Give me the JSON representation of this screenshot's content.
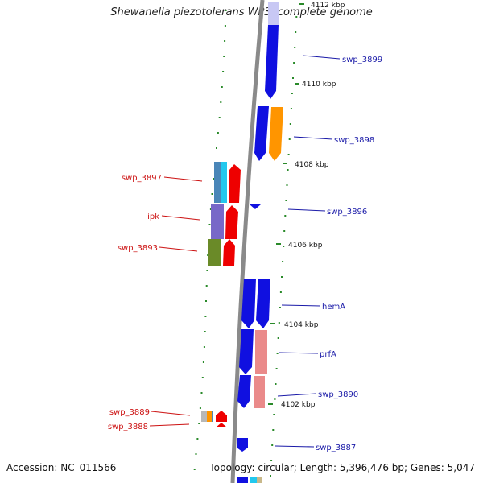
{
  "title": "Shewanella piezotolerans WP3, complete genome",
  "footer": {
    "accession": "Accession: NC_011566",
    "summary": "Topology: circular; Length: 5,396,476 bp; Genes: 5,047"
  },
  "ticks": [
    "4112 kbp",
    "4110 kbp",
    "4108 kbp",
    "4106 kbp",
    "4104 kbp",
    "4102 kbp"
  ],
  "gene_labels": {
    "forward": [
      "swp_3899",
      "swp_3898",
      "swp_3896",
      "hemA",
      "prfA",
      "swp_3890",
      "swp_3887"
    ],
    "reverse": [
      "swp_3897",
      "ipk",
      "swp_3893",
      "swp_3889",
      "swp_3888"
    ]
  },
  "colors": {
    "forward_label": "#1a1aa8",
    "reverse_label": "#cc1111",
    "backbone": "#888888",
    "blue": "#1010e0",
    "orange": "#ff9500",
    "red": "#ee0000",
    "pink": "#ea8a8a",
    "steel": "#4a86b8",
    "cyan": "#22c8ee",
    "lavender": "#7868c8",
    "olive": "#6a8a28",
    "tick": "#2a8a2a"
  }
}
